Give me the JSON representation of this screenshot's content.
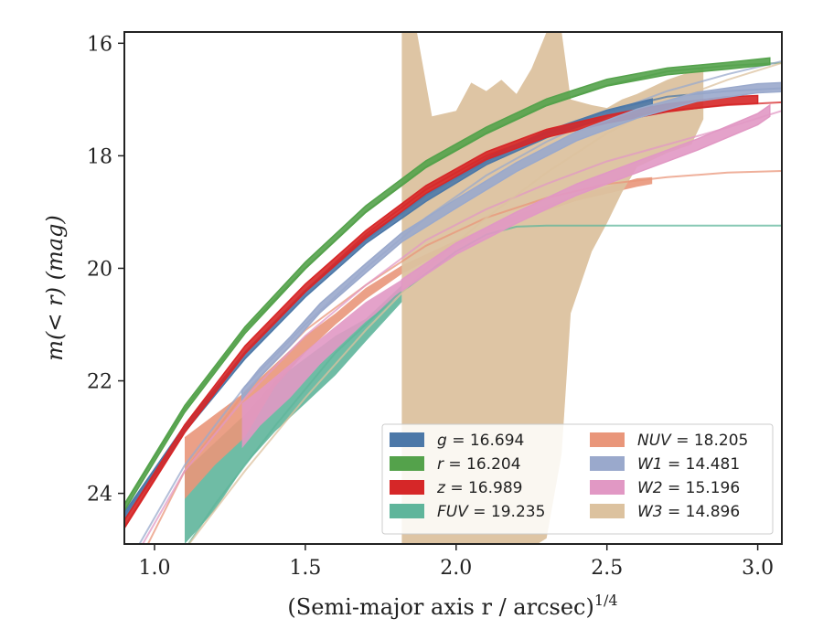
{
  "chart_data": {
    "type": "line",
    "xlabel": "(Semi-major axis r / arcsec)",
    "xlabel_sup": "1/4",
    "ylabel": "m(< r) (mag)",
    "xlim": [
      0.9,
      3.08
    ],
    "ylim": [
      24.9,
      15.8
    ],
    "y_inverted": true,
    "xticks": [
      1.0,
      1.5,
      2.0,
      2.5,
      3.0
    ],
    "xtick_labels": [
      "1.0",
      "1.5",
      "2.0",
      "2.5",
      "3.0"
    ],
    "yticks": [
      16,
      18,
      20,
      22,
      24
    ],
    "ytick_labels": [
      "16",
      "18",
      "20",
      "22",
      "24"
    ],
    "grid": false,
    "legend_placement": "lower-right",
    "legend_columns": 2,
    "series": [
      {
        "name": "g = 16.694",
        "color": "#4c78a8",
        "model": [
          [
            0.9,
            24.4
          ],
          [
            1.1,
            22.8
          ],
          [
            1.3,
            21.5
          ],
          [
            1.5,
            20.4
          ],
          [
            1.7,
            19.5
          ],
          [
            1.9,
            18.7
          ],
          [
            2.1,
            18.1
          ],
          [
            2.3,
            17.6
          ],
          [
            2.5,
            17.2
          ],
          [
            2.7,
            16.95
          ],
          [
            2.9,
            16.85
          ],
          [
            3.08,
            16.8
          ]
        ],
        "data": [
          [
            0.9,
            24.4
          ],
          [
            1.1,
            22.85
          ],
          [
            1.3,
            21.55
          ],
          [
            1.5,
            20.45
          ],
          [
            1.7,
            19.5
          ],
          [
            1.9,
            18.75
          ],
          [
            2.1,
            18.1
          ],
          [
            2.3,
            17.62
          ],
          [
            2.5,
            17.25
          ],
          [
            2.65,
            17.05
          ]
        ],
        "band": 0.06
      },
      {
        "name": "r = 16.204",
        "color": "#54a24b",
        "model": [
          [
            0.9,
            24.2
          ],
          [
            1.1,
            22.5
          ],
          [
            1.3,
            21.1
          ],
          [
            1.5,
            20.0
          ],
          [
            1.7,
            19.0
          ],
          [
            1.9,
            18.2
          ],
          [
            2.1,
            17.6
          ],
          [
            2.3,
            17.1
          ],
          [
            2.5,
            16.75
          ],
          [
            2.7,
            16.5
          ],
          [
            2.9,
            16.4
          ],
          [
            3.08,
            16.35
          ]
        ],
        "data": [
          [
            0.9,
            24.25
          ],
          [
            1.1,
            22.5
          ],
          [
            1.3,
            21.1
          ],
          [
            1.5,
            19.95
          ],
          [
            1.7,
            18.95
          ],
          [
            1.9,
            18.15
          ],
          [
            2.1,
            17.55
          ],
          [
            2.3,
            17.05
          ],
          [
            2.5,
            16.7
          ],
          [
            2.7,
            16.5
          ],
          [
            2.9,
            16.4
          ],
          [
            3.04,
            16.32
          ]
        ],
        "band": 0.06
      },
      {
        "name": "z = 16.989",
        "color": "#d62728",
        "model": [
          [
            0.9,
            24.6
          ],
          [
            1.1,
            22.9
          ],
          [
            1.3,
            21.5
          ],
          [
            1.5,
            20.4
          ],
          [
            1.7,
            19.4
          ],
          [
            1.9,
            18.6
          ],
          [
            2.1,
            18.0
          ],
          [
            2.3,
            17.6
          ],
          [
            2.5,
            17.35
          ],
          [
            2.7,
            17.2
          ],
          [
            2.9,
            17.1
          ],
          [
            3.08,
            17.05
          ]
        ],
        "data": [
          [
            0.9,
            24.55
          ],
          [
            1.1,
            22.85
          ],
          [
            1.3,
            21.45
          ],
          [
            1.5,
            20.35
          ],
          [
            1.7,
            19.4
          ],
          [
            1.9,
            18.6
          ],
          [
            2.1,
            18.0
          ],
          [
            2.3,
            17.6
          ],
          [
            2.5,
            17.35
          ],
          [
            2.7,
            17.15
          ],
          [
            2.9,
            17.02
          ],
          [
            3.0,
            17.0
          ]
        ],
        "band": 0.07
      },
      {
        "name": "FUV = 19.235",
        "color": "#5fb59b",
        "model": [
          [
            1.0,
            25.8
          ],
          [
            1.2,
            24.2
          ],
          [
            1.4,
            22.8
          ],
          [
            1.6,
            21.5
          ],
          [
            1.8,
            20.5
          ],
          [
            2.0,
            19.7
          ],
          [
            2.1,
            19.4
          ],
          [
            2.2,
            19.26
          ],
          [
            2.3,
            19.24
          ],
          [
            3.08,
            19.24
          ]
        ],
        "lower": [
          [
            1.1,
            24.9
          ],
          [
            1.2,
            24.3
          ],
          [
            1.3,
            23.5
          ],
          [
            1.4,
            22.9
          ],
          [
            1.5,
            22.4
          ],
          [
            1.6,
            21.9
          ],
          [
            1.7,
            21.3
          ],
          [
            1.82,
            20.6
          ]
        ],
        "upper": [
          [
            1.1,
            23.6
          ],
          [
            1.2,
            23.1
          ],
          [
            1.3,
            22.6
          ],
          [
            1.4,
            22.0
          ],
          [
            1.5,
            21.6
          ],
          [
            1.6,
            21.2
          ],
          [
            1.7,
            20.9
          ],
          [
            1.82,
            20.3
          ]
        ]
      },
      {
        "name": "NUV = 18.205",
        "color": "#e9967a",
        "model": [
          [
            0.95,
            25.2
          ],
          [
            1.1,
            23.6
          ],
          [
            1.3,
            22.2
          ],
          [
            1.5,
            21.1
          ],
          [
            1.7,
            20.3
          ],
          [
            1.9,
            19.6
          ],
          [
            2.1,
            19.1
          ],
          [
            2.3,
            18.75
          ],
          [
            2.5,
            18.5
          ],
          [
            2.7,
            18.38
          ],
          [
            2.9,
            18.3
          ],
          [
            3.08,
            18.27
          ]
        ],
        "lower": [
          [
            1.1,
            24.1
          ],
          [
            1.2,
            23.5
          ],
          [
            1.3,
            23.0
          ],
          [
            1.4,
            22.1
          ],
          [
            1.5,
            21.5
          ],
          [
            1.6,
            21.0
          ],
          [
            1.7,
            20.55
          ],
          [
            1.82,
            20.1
          ],
          [
            2.0,
            19.6
          ],
          [
            2.2,
            19.15
          ],
          [
            2.4,
            18.8
          ],
          [
            2.6,
            18.55
          ],
          [
            2.65,
            18.5
          ]
        ],
        "upper": [
          [
            1.1,
            23.0
          ],
          [
            1.2,
            22.6
          ],
          [
            1.3,
            22.2
          ],
          [
            1.4,
            21.7
          ],
          [
            1.5,
            21.2
          ],
          [
            1.6,
            20.8
          ],
          [
            1.7,
            20.35
          ],
          [
            1.82,
            19.95
          ],
          [
            2.0,
            19.5
          ],
          [
            2.2,
            19.05
          ],
          [
            2.4,
            18.7
          ],
          [
            2.6,
            18.4
          ],
          [
            2.65,
            18.38
          ]
        ]
      },
      {
        "name": "W1 = 14.481",
        "color": "#9aa9cc",
        "model": [
          [
            0.95,
            24.9
          ],
          [
            1.1,
            23.5
          ],
          [
            1.3,
            22.1
          ],
          [
            1.5,
            21.0
          ],
          [
            1.7,
            20.0
          ],
          [
            1.9,
            19.1
          ],
          [
            2.1,
            18.35
          ],
          [
            2.3,
            17.75
          ],
          [
            2.5,
            17.25
          ],
          [
            2.7,
            16.85
          ],
          [
            2.9,
            16.55
          ],
          [
            3.08,
            16.32
          ]
        ],
        "data": [
          [
            1.29,
            22.25
          ],
          [
            1.35,
            21.85
          ],
          [
            1.45,
            21.3
          ],
          [
            1.55,
            20.7
          ],
          [
            1.7,
            20.0
          ],
          [
            1.82,
            19.45
          ],
          [
            2.0,
            18.85
          ],
          [
            2.2,
            18.2
          ],
          [
            2.4,
            17.65
          ],
          [
            2.6,
            17.25
          ],
          [
            2.8,
            16.95
          ],
          [
            3.0,
            16.8
          ],
          [
            3.08,
            16.78
          ]
        ],
        "band": 0.08
      },
      {
        "name": "W2 = 15.196",
        "color": "#e198c4",
        "model": [
          [
            0.95,
            25.0
          ],
          [
            1.1,
            23.6
          ],
          [
            1.3,
            22.3
          ],
          [
            1.5,
            21.2
          ],
          [
            1.7,
            20.3
          ],
          [
            1.9,
            19.5
          ],
          [
            2.1,
            18.95
          ],
          [
            2.3,
            18.5
          ],
          [
            2.5,
            18.1
          ],
          [
            2.7,
            17.8
          ],
          [
            2.9,
            17.5
          ],
          [
            3.08,
            17.2
          ]
        ],
        "lower": [
          [
            1.29,
            23.2
          ],
          [
            1.35,
            22.8
          ],
          [
            1.45,
            22.3
          ],
          [
            1.55,
            21.7
          ],
          [
            1.7,
            20.95
          ],
          [
            1.82,
            20.45
          ]
        ],
        "upper": [
          [
            1.29,
            22.4
          ],
          [
            1.35,
            22.15
          ],
          [
            1.45,
            21.7
          ],
          [
            1.55,
            21.25
          ],
          [
            1.7,
            20.6
          ],
          [
            1.82,
            20.2
          ]
        ],
        "data": [
          [
            1.82,
            20.3
          ],
          [
            2.0,
            19.65
          ],
          [
            2.2,
            19.1
          ],
          [
            2.4,
            18.6
          ],
          [
            2.6,
            18.2
          ],
          [
            2.8,
            17.8
          ],
          [
            3.0,
            17.35
          ],
          [
            3.04,
            17.2
          ]
        ],
        "band": 0.1
      },
      {
        "name": "W3 = 14.896",
        "color": "#dcc29f",
        "model": [
          [
            1.1,
            25.0
          ],
          [
            1.3,
            23.6
          ],
          [
            1.5,
            22.3
          ],
          [
            1.7,
            21.1
          ],
          [
            1.9,
            20.0
          ],
          [
            2.1,
            19.1
          ],
          [
            2.3,
            18.3
          ],
          [
            2.5,
            17.6
          ],
          [
            2.7,
            17.05
          ],
          [
            2.9,
            16.65
          ],
          [
            3.08,
            16.35
          ]
        ],
        "lower": [
          [
            1.82,
            24.9
          ],
          [
            1.9,
            24.9
          ],
          [
            2.0,
            24.9
          ],
          [
            2.1,
            24.9
          ],
          [
            2.2,
            24.9
          ],
          [
            2.27,
            24.9
          ],
          [
            2.3,
            24.8
          ],
          [
            2.35,
            23.3
          ],
          [
            2.38,
            20.8
          ],
          [
            2.45,
            19.7
          ],
          [
            2.5,
            19.2
          ],
          [
            2.55,
            18.65
          ],
          [
            2.6,
            18.2
          ],
          [
            2.7,
            17.95
          ],
          [
            2.78,
            17.8
          ],
          [
            2.82,
            17.35
          ]
        ],
        "upper": [
          [
            1.82,
            15.8
          ],
          [
            1.87,
            15.8
          ],
          [
            1.92,
            17.3
          ],
          [
            2.0,
            17.2
          ],
          [
            2.05,
            16.7
          ],
          [
            2.1,
            16.85
          ],
          [
            2.15,
            16.65
          ],
          [
            2.2,
            16.9
          ],
          [
            2.25,
            16.45
          ],
          [
            2.3,
            15.8
          ],
          [
            2.35,
            15.8
          ],
          [
            2.38,
            17.0
          ],
          [
            2.45,
            17.1
          ],
          [
            2.5,
            17.15
          ],
          [
            2.55,
            17.0
          ],
          [
            2.6,
            16.9
          ],
          [
            2.7,
            16.65
          ],
          [
            2.78,
            16.5
          ],
          [
            2.82,
            16.45
          ]
        ]
      }
    ],
    "legend": [
      {
        "var": "g",
        "value": "16.694",
        "color": "#4c78a8"
      },
      {
        "var": "r",
        "value": "16.204",
        "color": "#54a24b"
      },
      {
        "var": "z",
        "value": "16.989",
        "color": "#d62728"
      },
      {
        "var": "FUV",
        "value": "19.235",
        "color": "#5fb59b"
      },
      {
        "var": "NUV",
        "value": "18.205",
        "color": "#e9967a"
      },
      {
        "var": "W1",
        "value": "14.481",
        "color": "#9aa9cc"
      },
      {
        "var": "W2",
        "value": "15.196",
        "color": "#e198c4"
      },
      {
        "var": "W3",
        "value": "14.896",
        "color": "#dcc29f"
      }
    ]
  }
}
